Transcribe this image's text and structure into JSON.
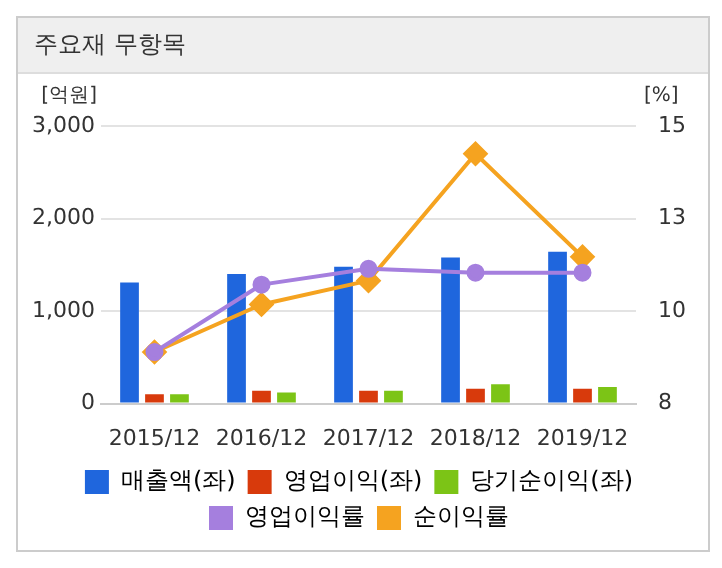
{
  "chart_data": {
    "type": "bar",
    "title": "주요재 무항목",
    "ylabel": "[억원]",
    "y2label": "[%]",
    "categories": [
      "2015/12",
      "2016/12",
      "2017/12",
      "2018/12",
      "2019/12"
    ],
    "series": [
      {
        "name": "매출액(좌)",
        "color": "#1f66dd",
        "values": [
          1310,
          1400,
          1480,
          1580,
          1640
        ]
      },
      {
        "name": "영업이익(좌)",
        "color": "#d83a0c",
        "values": [
          100,
          140,
          140,
          160,
          160
        ]
      },
      {
        "name": "당기순이익(좌)",
        "color": "#7cc416",
        "values": [
          100,
          120,
          140,
          210,
          180
        ]
      },
      {
        "name": "영업이익률",
        "type": "line",
        "axis": "y2",
        "marker": "circle",
        "color": "#a57fde",
        "values": [
          9.3,
          11.0,
          11.4,
          11.3,
          11.3
        ]
      },
      {
        "name": "순이익률",
        "type": "line",
        "axis": "y2",
        "marker": "diamond",
        "color": "#f5a320",
        "values": [
          9.3,
          10.5,
          11.1,
          14.3,
          11.7
        ]
      }
    ],
    "ylim": [
      0,
      3000
    ],
    "yticks": [
      {
        "value": 0,
        "label": "0"
      },
      {
        "value": 1000,
        "label": "1,000"
      },
      {
        "value": 2000,
        "label": "2,000"
      },
      {
        "value": 3000,
        "label": "3,000"
      }
    ],
    "y2lim": [
      8,
      15
    ],
    "y2ticks": [
      8,
      {
        "value": 10.333,
        "label": "10"
      },
      {
        "value": 12.667,
        "label": "13"
      },
      15
    ],
    "grid": "y",
    "legend": "bottom"
  }
}
